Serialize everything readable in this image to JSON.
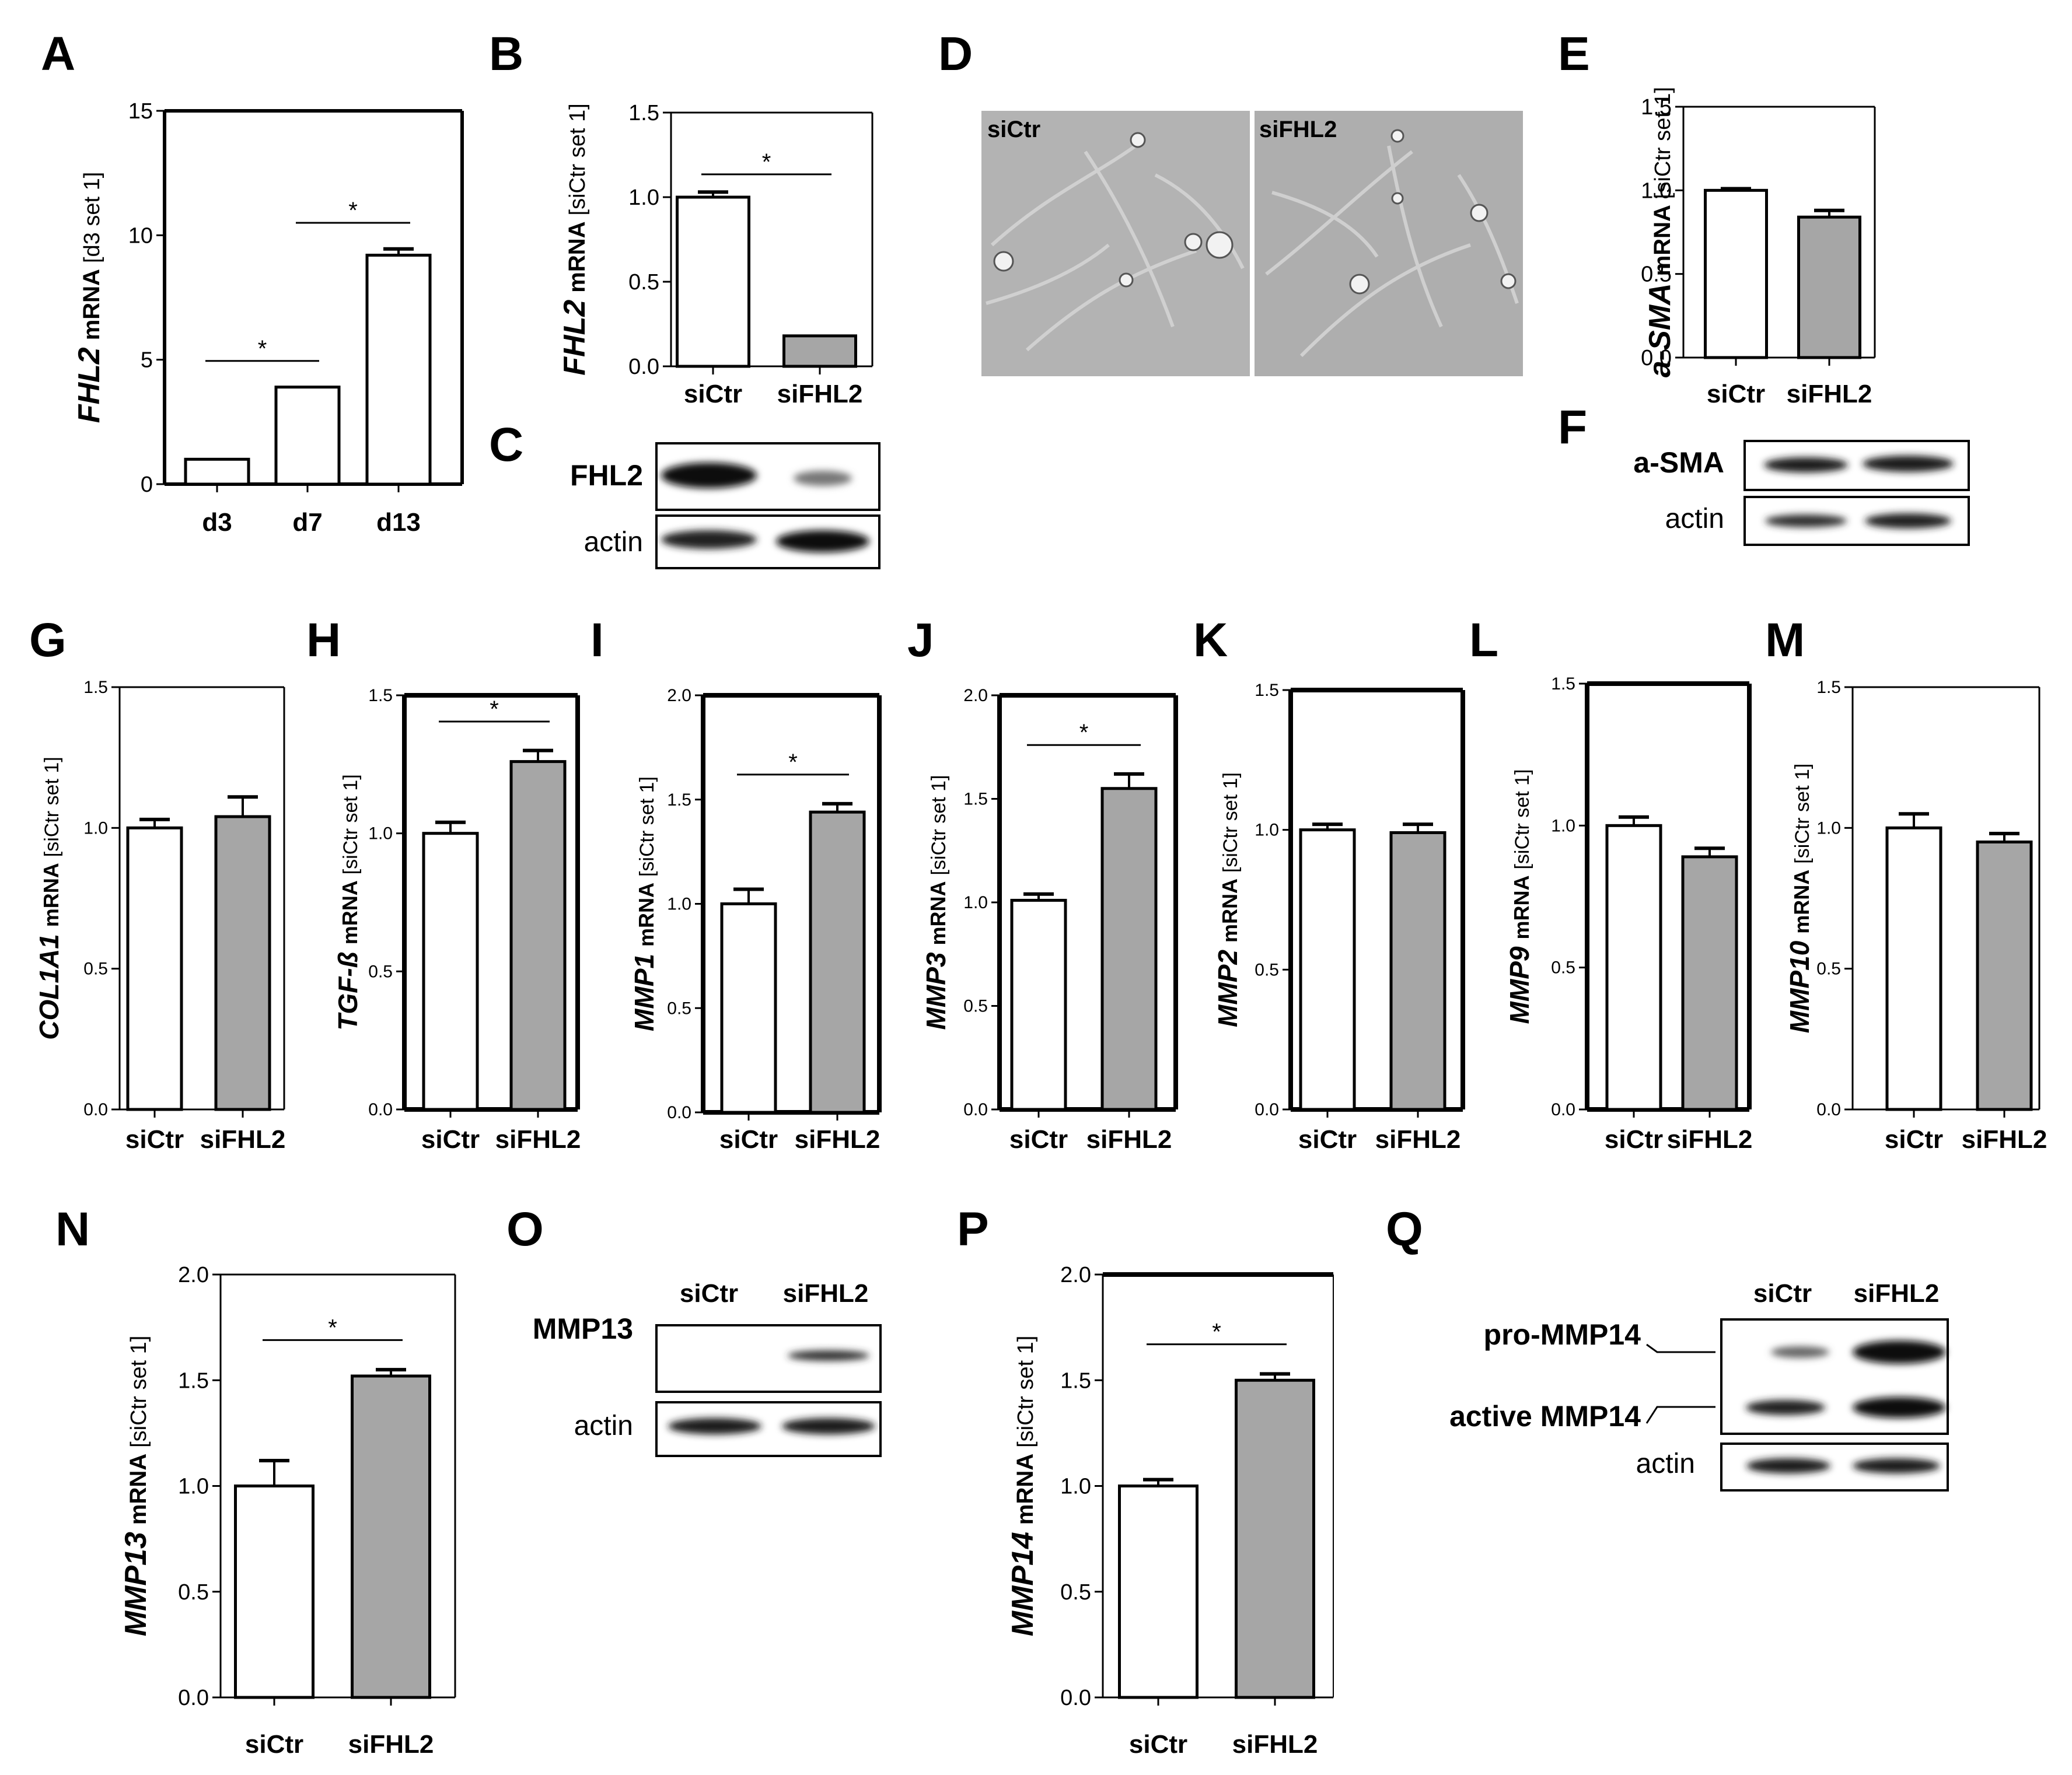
{
  "figure": {
    "bar_colors": {
      "control": "#ffffff",
      "treated": "#a6a6a6",
      "stroke": "#000000"
    },
    "micrograph_color": "#b3b3b3"
  },
  "chart_data": [
    {
      "panel": "A",
      "type": "bar",
      "gene": "FHL2",
      "ylabel_rest": "mRNA",
      "ylabel_unit": "[d3 set 1]",
      "categories": [
        "d3",
        "d7",
        "d13"
      ],
      "values": [
        1.0,
        3.9,
        9.2
      ],
      "errors": [
        0.0,
        0.0,
        0.25
      ],
      "fills": [
        "#ffffff",
        "#ffffff",
        "#ffffff"
      ],
      "ylim": [
        0,
        15
      ],
      "yticks": [
        "0",
        "5",
        "10",
        "15"
      ],
      "significance": [
        {
          "from": 0,
          "to": 1,
          "label": "*"
        },
        {
          "from": 1,
          "to": 2,
          "label": "*"
        }
      ]
    },
    {
      "panel": "B",
      "type": "bar",
      "gene": "FHL2",
      "ylabel_rest": "mRNA",
      "ylabel_unit": "[siCtr set 1]",
      "categories": [
        "siCtr",
        "siFHL2"
      ],
      "values": [
        1.0,
        0.18
      ],
      "errors": [
        0.03,
        0.0
      ],
      "fills": [
        "#ffffff",
        "#a6a6a6"
      ],
      "ylim": [
        0,
        1.5
      ],
      "yticks": [
        "0.0",
        "0.5",
        "1.0",
        "1.5"
      ],
      "significance": [
        {
          "from": 0,
          "to": 1,
          "label": "*"
        }
      ]
    },
    {
      "panel": "E",
      "type": "bar",
      "gene": "a-SMA",
      "ylabel_rest": "mRNA",
      "ylabel_unit": "[siCtr set 1]",
      "categories": [
        "siCtr",
        "siFHL2"
      ],
      "values": [
        1.0,
        0.84
      ],
      "errors": [
        0.01,
        0.04
      ],
      "fills": [
        "#ffffff",
        "#a6a6a6"
      ],
      "ylim": [
        0,
        1.5
      ],
      "yticks": [
        "0.0",
        "0.5",
        "1.0",
        "1.5"
      ],
      "significance": []
    },
    {
      "panel": "G",
      "type": "bar",
      "gene": "COL1A1",
      "ylabel_rest": "mRNA",
      "ylabel_unit": "[siCtr set 1]",
      "categories": [
        "siCtr",
        "siFHL2"
      ],
      "values": [
        1.0,
        1.04
      ],
      "errors": [
        0.03,
        0.07
      ],
      "fills": [
        "#ffffff",
        "#a6a6a6"
      ],
      "ylim": [
        0,
        1.5
      ],
      "yticks": [
        "0.0",
        "0.5",
        "1.0",
        "1.5"
      ],
      "significance": []
    },
    {
      "panel": "H",
      "type": "bar",
      "gene": "TGF-ß",
      "ylabel_rest": "mRNA",
      "ylabel_unit": "[siCtr set 1]",
      "categories": [
        "siCtr",
        "siFHL2"
      ],
      "values": [
        1.0,
        1.26
      ],
      "errors": [
        0.04,
        0.04
      ],
      "fills": [
        "#ffffff",
        "#a6a6a6"
      ],
      "ylim": [
        0,
        1.5
      ],
      "yticks": [
        "0.0",
        "0.5",
        "1.0",
        "1.5"
      ],
      "significance": [
        {
          "from": 0,
          "to": 1,
          "label": "*"
        }
      ]
    },
    {
      "panel": "I",
      "type": "bar",
      "gene": "MMP1",
      "ylabel_rest": "mRNA",
      "ylabel_unit": "[siCtr set 1]",
      "categories": [
        "siCtr",
        "siFHL2"
      ],
      "values": [
        1.0,
        1.44
      ],
      "errors": [
        0.07,
        0.04
      ],
      "fills": [
        "#ffffff",
        "#a6a6a6"
      ],
      "ylim": [
        0,
        2.0
      ],
      "yticks": [
        "0.0",
        "0.5",
        "1.0",
        "1.5",
        "2.0"
      ],
      "significance": [
        {
          "from": 0,
          "to": 1,
          "label": "*"
        }
      ]
    },
    {
      "panel": "J",
      "type": "bar",
      "gene": "MMP3",
      "ylabel_rest": "mRNA",
      "ylabel_unit": "[siCtr set 1]",
      "categories": [
        "siCtr",
        "siFHL2"
      ],
      "values": [
        1.01,
        1.55
      ],
      "errors": [
        0.03,
        0.07
      ],
      "fills": [
        "#ffffff",
        "#a6a6a6"
      ],
      "ylim": [
        0,
        2.0
      ],
      "yticks": [
        "0.0",
        "0.5",
        "1.0",
        "1.5",
        "2.0"
      ],
      "significance": [
        {
          "from": 0,
          "to": 1,
          "label": "*"
        }
      ]
    },
    {
      "panel": "K",
      "type": "bar",
      "gene": "MMP2",
      "ylabel_rest": "mRNA",
      "ylabel_unit": "[siCtr set 1]",
      "categories": [
        "siCtr",
        "siFHL2"
      ],
      "values": [
        1.0,
        0.99
      ],
      "errors": [
        0.02,
        0.03
      ],
      "fills": [
        "#ffffff",
        "#a6a6a6"
      ],
      "ylim": [
        0,
        1.5
      ],
      "yticks": [
        "0.0",
        "0.5",
        "1.0",
        "1.5"
      ],
      "significance": []
    },
    {
      "panel": "L",
      "type": "bar",
      "gene": "MMP9",
      "ylabel_rest": "mRNA",
      "ylabel_unit": "[siCtr set 1]",
      "categories": [
        "siCtr",
        "siFHL2"
      ],
      "values": [
        1.0,
        0.89
      ],
      "errors": [
        0.03,
        0.03
      ],
      "fills": [
        "#ffffff",
        "#a6a6a6"
      ],
      "ylim": [
        0,
        1.5
      ],
      "yticks": [
        "0.0",
        "0.5",
        "1.0",
        "1.5"
      ],
      "significance": []
    },
    {
      "panel": "M",
      "type": "bar",
      "gene": "MMP10",
      "ylabel_rest": "mRNA",
      "ylabel_unit": "[siCtr set 1]",
      "categories": [
        "siCtr",
        "siFHL2"
      ],
      "values": [
        1.0,
        0.95
      ],
      "errors": [
        0.05,
        0.03
      ],
      "fills": [
        "#ffffff",
        "#a6a6a6"
      ],
      "ylim": [
        0,
        1.5
      ],
      "yticks": [
        "0.0",
        "0.5",
        "1.0",
        "1.5"
      ],
      "significance": []
    },
    {
      "panel": "N",
      "type": "bar",
      "gene": "MMP13",
      "ylabel_rest": "mRNA",
      "ylabel_unit": "[siCtr set 1]",
      "categories": [
        "siCtr",
        "siFHL2"
      ],
      "values": [
        1.0,
        1.52
      ],
      "errors": [
        0.12,
        0.03
      ],
      "fills": [
        "#ffffff",
        "#a6a6a6"
      ],
      "ylim": [
        0,
        2.0
      ],
      "yticks": [
        "0.0",
        "0.5",
        "1.0",
        "1.5",
        "2.0"
      ],
      "significance": [
        {
          "from": 0,
          "to": 1,
          "label": "*"
        }
      ]
    },
    {
      "panel": "P",
      "type": "bar",
      "gene": "MMP14",
      "ylabel_rest": "mRNA",
      "ylabel_unit": "[siCtr set 1]",
      "categories": [
        "siCtr",
        "siFHL2"
      ],
      "values": [
        1.0,
        1.5
      ],
      "errors": [
        0.03,
        0.03
      ],
      "fills": [
        "#ffffff",
        "#a6a6a6"
      ],
      "ylim": [
        0,
        2.0
      ],
      "yticks": [
        "0.0",
        "0.5",
        "1.0",
        "1.5",
        "2.0"
      ],
      "significance": [
        {
          "from": 0,
          "to": 1,
          "label": "*"
        }
      ]
    }
  ],
  "blots": {
    "C": {
      "letter": "C",
      "rows": [
        "FHL2",
        "actin"
      ]
    },
    "F": {
      "letter": "F",
      "rows": [
        "a-SMA",
        "actin"
      ]
    },
    "O": {
      "letter": "O",
      "columns": [
        "siCtr",
        "siFHL2"
      ],
      "rows": [
        "MMP13",
        "actin"
      ]
    },
    "Q": {
      "letter": "Q",
      "columns": [
        "siCtr",
        "siFHL2"
      ],
      "rows": [
        "pro-MMP14",
        "active MMP14",
        "actin"
      ]
    }
  },
  "micrograph": {
    "letter": "D",
    "left_label": "siCtr",
    "right_label": "siFHL2"
  }
}
